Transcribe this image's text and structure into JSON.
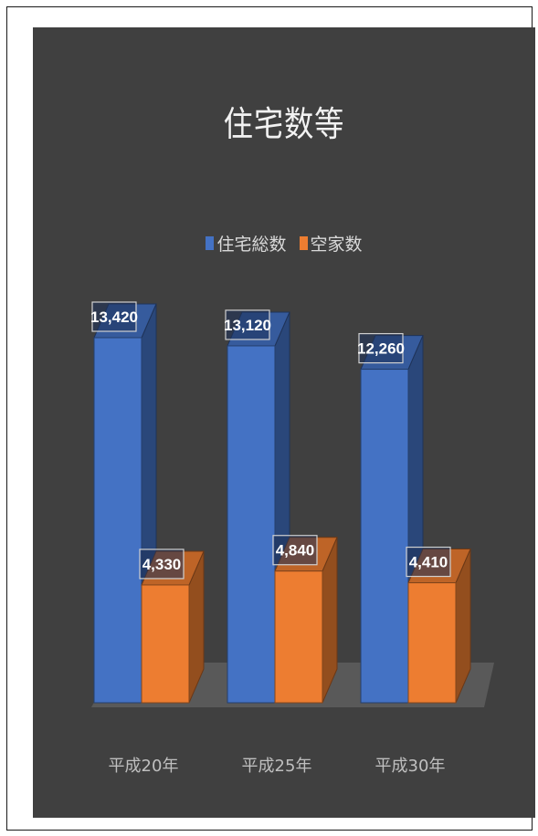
{
  "chart_data": {
    "type": "bar",
    "title": "住宅数等",
    "categories": [
      "平成20年",
      "平成25年",
      "平成30年"
    ],
    "series": [
      {
        "name": "住宅総数",
        "values": [
          13420,
          13120,
          12260
        ],
        "labels": [
          "13,420",
          "13,120",
          "12,260"
        ],
        "color": "#4472c4"
      },
      {
        "name": "空家数",
        "values": [
          4330,
          4840,
          4410
        ],
        "labels": [
          "4,330",
          "4,840",
          "4,410"
        ],
        "color": "#ed7d31"
      }
    ],
    "ylim": [
      0,
      14000
    ],
    "grid": false,
    "legend": "top-center",
    "style": "3d-clustered-column",
    "background": "#404040"
  }
}
